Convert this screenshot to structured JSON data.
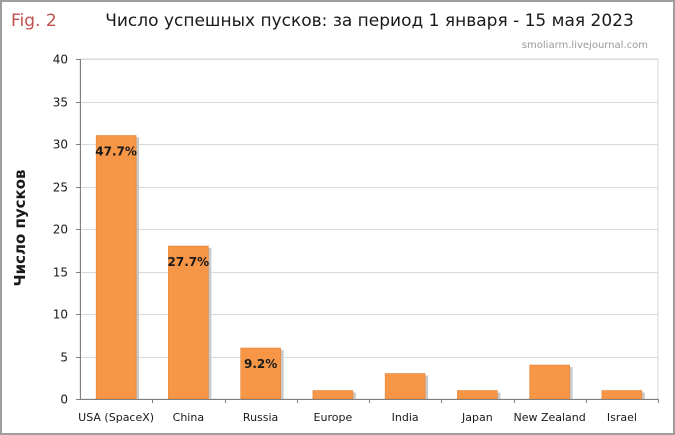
{
  "figure_label": "Fig. 2",
  "source": "smoliarm.livejournal.com",
  "colors": {
    "bar": "#f79646",
    "bar_shadow": "#c9c9c9",
    "grid": "#d9d9d9",
    "axis": "#7f7f7f",
    "fig_label": "#c0504d"
  },
  "chart_data": {
    "type": "bar",
    "title": "Число успешных пусков: за период 1 января - 15 мая 2023",
    "xlabel": "",
    "ylabel": "Число пусков",
    "ylim": [
      0,
      40
    ],
    "yticks": [
      0,
      5,
      10,
      15,
      20,
      25,
      30,
      35,
      40
    ],
    "grid": true,
    "categories": [
      "USA (SpaceX)",
      "China",
      "Russia",
      "Europe",
      "India",
      "Japan",
      "New Zealand",
      "Israel"
    ],
    "values": [
      31,
      18,
      6,
      1,
      3,
      1,
      4,
      1
    ],
    "data_labels": [
      "47.7%",
      "27.7%",
      "9.2%",
      "",
      "",
      "",
      "",
      ""
    ]
  }
}
